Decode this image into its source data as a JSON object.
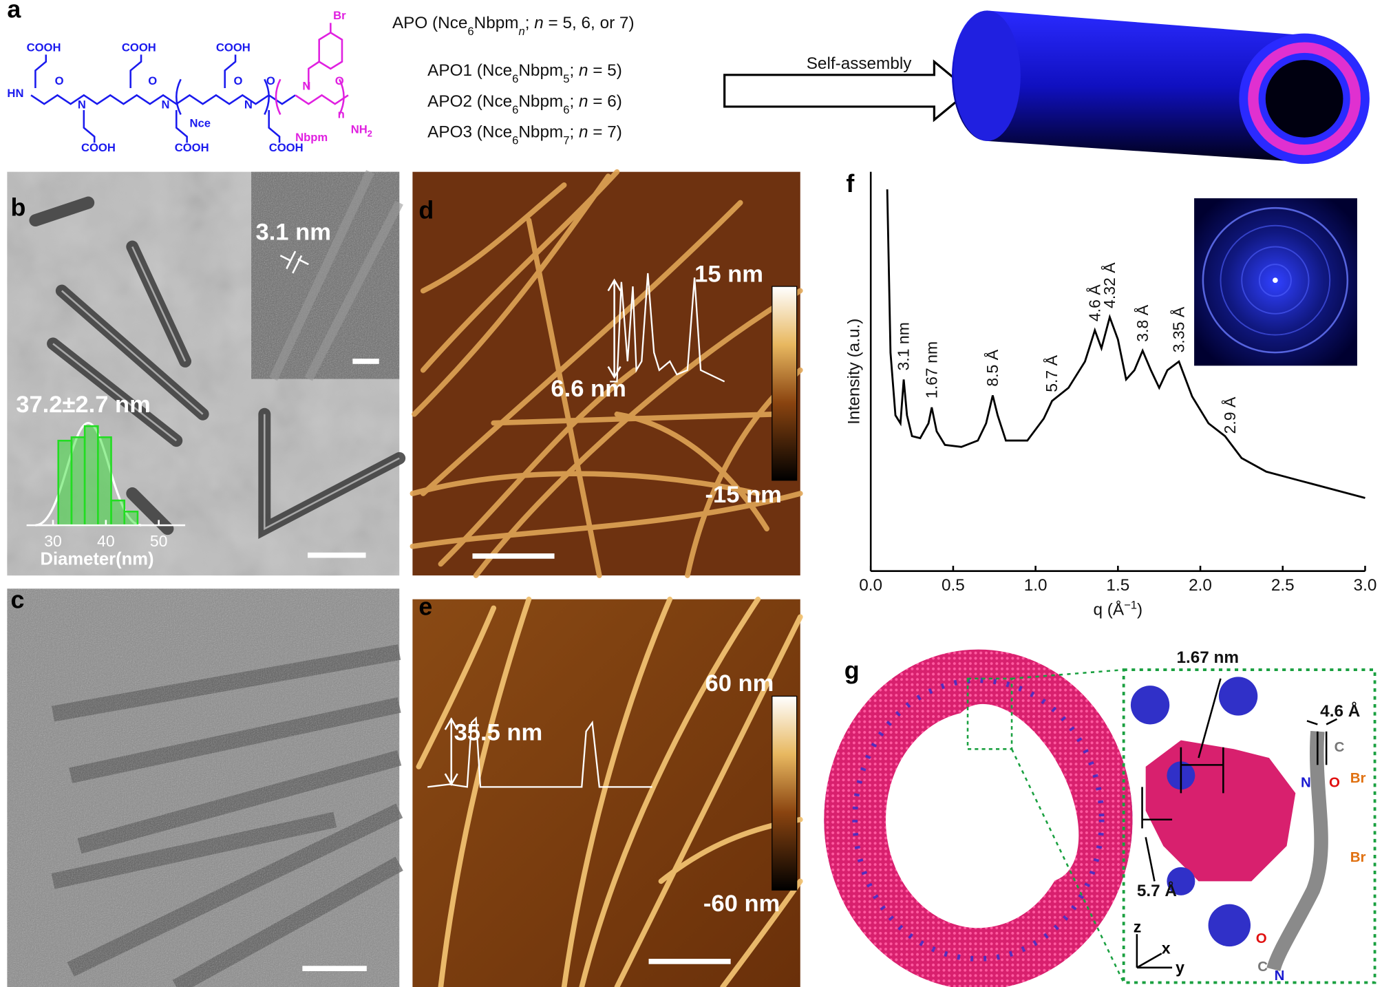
{
  "panel_labels": [
    "a",
    "b",
    "c",
    "d",
    "e",
    "f",
    "g"
  ],
  "panel_a": {
    "structure_labels": [
      "COOH",
      "COOH",
      "COOH",
      "HN",
      "N",
      "N",
      "N",
      "N",
      "O",
      "O",
      "O",
      "O",
      "O",
      "Nce",
      "COOH",
      "COOH",
      "COOH",
      "Br",
      "Nbpm",
      "n"
    ],
    "nh2": [
      "NH",
      "2"
    ],
    "apo_lines": [
      [
        "APO (Nce",
        "6",
        "Nbpm",
        "n",
        "; ",
        "n",
        " = 5, 6, or 7)"
      ],
      [
        "APO1 (Nce",
        "6",
        "Nbpm",
        "5",
        "; ",
        "n",
        " = 5)"
      ],
      [
        "APO2 (Nce",
        "6",
        "Nbpm",
        "6",
        "; ",
        "n",
        " = 6)"
      ],
      [
        "APO3 (Nce",
        "6",
        "Nbpm",
        "7",
        "; ",
        "n",
        " = 7)"
      ]
    ],
    "arrow_label": "Self-assembly"
  },
  "panel_b": {
    "inset_label": "3.1 nm",
    "size_label": "37.2±2.7 nm",
    "histogram": {
      "type": "histogram",
      "bins": [
        31,
        33.5,
        36,
        38.5,
        41,
        43.5,
        46
      ],
      "counts": [
        99,
        103,
        116,
        103,
        29,
        16
      ],
      "xlim": [
        25,
        55
      ],
      "ylim": [
        0,
        130
      ],
      "xticks": [
        30,
        40,
        50
      ],
      "xlabel": "Diameter(nm)",
      "color": "#22dd22"
    }
  },
  "panel_d": {
    "colorbar_top": "15 nm",
    "colorbar_bottom": "-15 nm",
    "profile_label": "6.6 nm"
  },
  "panel_e": {
    "colorbar_top": "60 nm",
    "colorbar_bottom": "-60 nm",
    "profile_label": "35.5 nm"
  },
  "chart_data": {
    "type": "line",
    "xlabel": [
      "q (Å",
      "−1",
      ")"
    ],
    "ylabel": "Intensity (a.u.)",
    "color": "#000000",
    "xlim": [
      0,
      3
    ],
    "ylim": [
      0,
      100
    ],
    "xticks": [
      {
        "value": 0,
        "label": "0.0"
      },
      0.5,
      {
        "value": 1,
        "label": "1.0"
      },
      1.5,
      {
        "value": 2,
        "label": "2.0"
      },
      2.5,
      {
        "value": 3,
        "label": "3.0"
      }
    ],
    "x": [
      0.1,
      0.12,
      0.15,
      0.18,
      0.2,
      0.22,
      0.25,
      0.3,
      0.35,
      0.37,
      0.4,
      0.45,
      0.55,
      0.65,
      0.7,
      0.74,
      0.77,
      0.82,
      0.95,
      1.05,
      1.1,
      1.2,
      1.3,
      1.36,
      1.4,
      1.45,
      1.5,
      1.55,
      1.6,
      1.65,
      1.7,
      1.75,
      1.8,
      1.87,
      1.95,
      2.05,
      2.15,
      2.25,
      2.4,
      2.6,
      2.8,
      3.0
    ],
    "values": [
      95.6,
      54.7,
      39,
      37,
      48,
      39,
      33.8,
      33.3,
      37,
      41,
      35,
      31.6,
      31.1,
      32.7,
      37,
      44,
      39,
      32.7,
      32.7,
      38.2,
      42.6,
      45.9,
      52.5,
      60.3,
      55.8,
      63.6,
      58,
      48,
      50.3,
      55.2,
      50.3,
      45.9,
      50.3,
      52.5,
      43.7,
      37,
      33.8,
      28.3,
      24.9,
      22.7,
      20.5,
      18.3
    ],
    "annotations": [
      {
        "text": "3.1 nm",
        "x": 0.2
      },
      {
        "text": "1.67 nm",
        "x": 0.37
      },
      {
        "text": "8.5 Å",
        "x": 0.74
      },
      {
        "text": "5.7 Å",
        "x": 1.1
      },
      {
        "text": "4.6 Å",
        "x": 1.36
      },
      {
        "text": "4.32 Å",
        "x": 1.45
      },
      {
        "text": "3.8 Å",
        "x": 1.65
      },
      {
        "text": "3.35 Å",
        "x": 1.87
      },
      {
        "text": "2.9 Å",
        "x": 2.18
      }
    ]
  },
  "panel_g": {
    "labels": [
      "1.67 nm",
      "4.6 Å",
      "5.7 Å"
    ],
    "elements": [
      "C",
      "Br",
      "N",
      "O",
      "Br",
      "O",
      "C",
      "N"
    ],
    "axes": [
      "z",
      "x",
      "y"
    ]
  }
}
